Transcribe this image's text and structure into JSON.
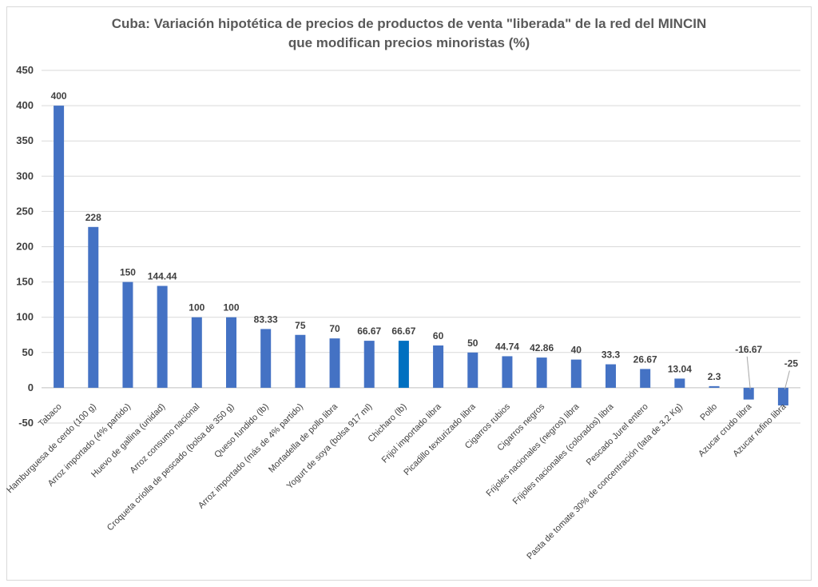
{
  "chart_data": {
    "type": "bar",
    "title_line1": "Cuba: Variación hipotética de precios de productos de venta \"liberada\" de la red del MINCIN",
    "title_line2": "que modifican precios minoristas (%)",
    "xlabel": "",
    "ylabel": "",
    "ylim": [
      -50,
      450
    ],
    "yticks": [
      -50,
      0,
      50,
      100,
      150,
      200,
      250,
      300,
      350,
      400,
      450
    ],
    "grid": true,
    "categories": [
      "Tabaco",
      "Hamburguesa de cerdo (100 g)",
      "Arroz importado (4% partido)",
      "Huevo de gallina (unidad)",
      "Arroz consumo nacional",
      "Croqueta criolla de pescado (bolsa de 350 g)",
      "Queso fundido (lb)",
      "Arroz importado (más de 4% partido)",
      "Mortadella de pollo libra",
      "Yogurt de soya (bolsa 917 ml)",
      "Chicharo (lb)",
      "Frijol importado libra",
      "Picadillo texturizado libra",
      "Cigarros rubios",
      "Cigarros negros",
      "Frijoles nacionales (negros) libra",
      "Frijoles nacionales (colorados) libra",
      "Pescado Jurel entero",
      "Pasta de tomate 30% de concentración (lata de 3,2 Kg)",
      "Pollo",
      "Azucar crudo libra",
      "Azucar refino libra"
    ],
    "values": [
      400,
      228,
      150,
      144.44,
      100,
      100,
      83.33,
      75,
      70,
      66.67,
      66.67,
      60,
      50,
      44.74,
      42.86,
      40,
      33.3,
      26.67,
      13.04,
      2.3,
      -16.67,
      -25
    ],
    "value_labels": [
      "400",
      "228",
      "150",
      "144.44",
      "100",
      "100",
      "83.33",
      "75",
      "70",
      "66.67",
      "66.67",
      "60",
      "50",
      "44.74",
      "42.86",
      "40",
      "33.3",
      "26.67",
      "13.04",
      "2.3",
      "-16.67",
      "-25"
    ],
    "highlight_index": 10,
    "colors": {
      "bar": "#4472c4",
      "highlight": "#0070c0",
      "grid": "#d9d9d9",
      "text": "#404040",
      "title": "#595959"
    }
  }
}
